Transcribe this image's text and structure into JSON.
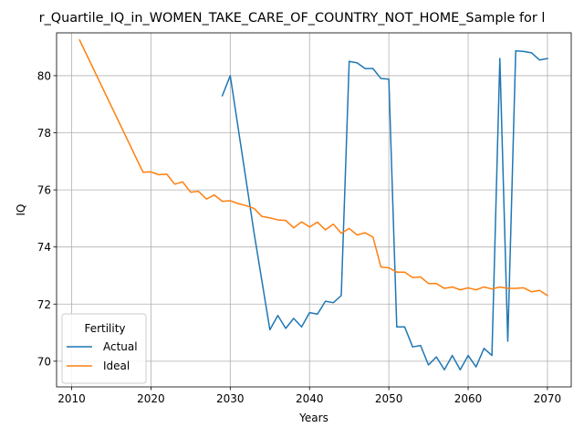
{
  "chart_data": {
    "type": "line",
    "title": "r_Quartile_IQ_in_WOMEN_TAKE_CARE_OF_COUNTRY_NOT_HOME_Sample for l",
    "xlabel": "Years",
    "ylabel": "IQ",
    "xlim": [
      2008.1,
      2073.0
    ],
    "ylim": [
      69.1,
      81.5
    ],
    "xticks": [
      2010,
      2020,
      2030,
      2040,
      2050,
      2060,
      2070
    ],
    "yticks": [
      70,
      72,
      74,
      76,
      78,
      80
    ],
    "grid": true,
    "legend": {
      "title": "Fertility",
      "placement": "lower-left"
    },
    "series": [
      {
        "name": "Actual",
        "color": "#1f77b4",
        "x": [
          2029,
          2030,
          2033,
          2035,
          2036,
          2037,
          2038,
          2039,
          2040,
          2041,
          2042,
          2043,
          2044,
          2045,
          2046,
          2047,
          2048,
          2049,
          2050,
          2051,
          2052,
          2053,
          2054,
          2055,
          2056,
          2057,
          2058,
          2059,
          2060,
          2061,
          2062,
          2063,
          2064,
          2065,
          2066,
          2067,
          2068,
          2069,
          2070
        ],
        "y": [
          79.3,
          80.0,
          74.5,
          71.1,
          71.6,
          71.15,
          71.5,
          71.2,
          71.7,
          71.65,
          72.1,
          72.05,
          72.3,
          80.5,
          80.45,
          80.25,
          80.25,
          79.9,
          79.88,
          71.2,
          71.2,
          70.5,
          70.55,
          69.87,
          70.15,
          69.7,
          70.2,
          69.7,
          70.2,
          69.8,
          70.45,
          70.2,
          80.6,
          70.7,
          80.87,
          80.85,
          80.8,
          80.55,
          80.6
        ]
      },
      {
        "name": "Ideal",
        "color": "#ff7f0e",
        "x": [
          2011,
          2019,
          2020,
          2021,
          2022,
          2023,
          2024,
          2025,
          2026,
          2027,
          2028,
          2029,
          2030,
          2031,
          2032,
          2033,
          2034,
          2035,
          2036,
          2037,
          2038,
          2039,
          2040,
          2041,
          2042,
          2043,
          2044,
          2045,
          2046,
          2047,
          2048,
          2049,
          2050,
          2051,
          2052,
          2053,
          2054,
          2055,
          2056,
          2057,
          2058,
          2059,
          2060,
          2061,
          2062,
          2063,
          2064,
          2065,
          2066,
          2067,
          2068,
          2069,
          2070
        ],
        "y": [
          81.25,
          76.62,
          76.63,
          76.53,
          76.55,
          76.2,
          76.28,
          75.92,
          75.95,
          75.68,
          75.82,
          75.6,
          75.62,
          75.52,
          75.45,
          75.35,
          75.07,
          75.02,
          74.95,
          74.93,
          74.67,
          74.88,
          74.7,
          74.87,
          74.6,
          74.8,
          74.48,
          74.65,
          74.42,
          74.5,
          74.35,
          73.3,
          73.27,
          73.12,
          73.12,
          72.93,
          72.95,
          72.72,
          72.72,
          72.55,
          72.6,
          72.5,
          72.57,
          72.5,
          72.6,
          72.53,
          72.6,
          72.55,
          72.55,
          72.57,
          72.43,
          72.48,
          72.3
        ]
      }
    ]
  }
}
